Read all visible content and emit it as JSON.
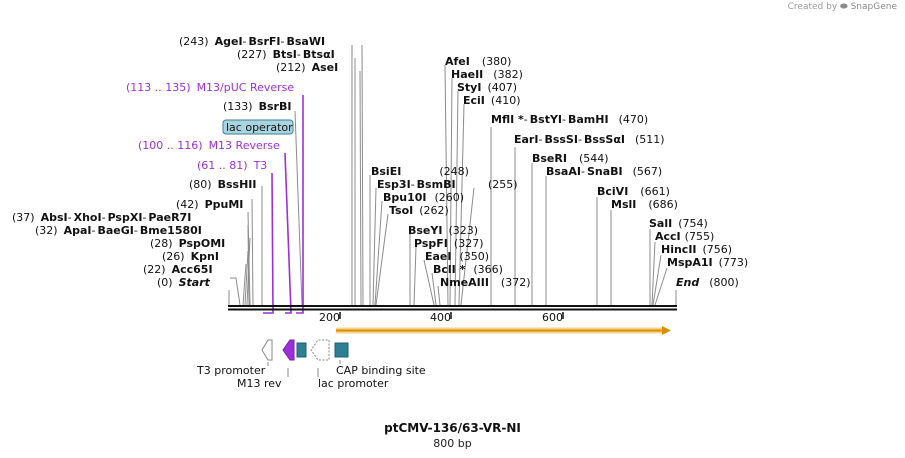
{
  "credit": {
    "prefix": "Created by",
    "brand": "SnapGene"
  },
  "plasmid": {
    "name": "ptCMV-136/63-VR-NI",
    "size_label": "800 bp"
  },
  "ruler": {
    "ticks": [
      "200",
      "400",
      "600"
    ]
  },
  "colors": {
    "feature_purple": "#9b30d9",
    "feature_teal": "#2f7f93",
    "orf_orange": "#f0a020",
    "lac_box": "#a9d4df"
  },
  "sites": [
    {
      "pos": "(243)",
      "names": [
        {
          "t": "AgeI"
        },
        {
          "t": "BsrFI"
        },
        {
          "t": "BsaWI"
        }
      ]
    },
    {
      "pos": "(227)",
      "names": [
        {
          "t": "BtsI"
        },
        {
          "t": "BtsαI"
        }
      ]
    },
    {
      "pos": "(212)",
      "names": [
        {
          "t": "AseI"
        }
      ]
    },
    {
      "pos": "(113 .. 135)",
      "names": [
        {
          "t": "M13/pUC Reverse"
        }
      ],
      "feature": true
    },
    {
      "pos": "(133)",
      "names": [
        {
          "t": "BsrBI"
        }
      ]
    },
    {
      "pos": "",
      "names": [
        {
          "t": "lac operator"
        }
      ],
      "box": true
    },
    {
      "pos": "(100 .. 116)",
      "names": [
        {
          "t": "M13 Reverse"
        }
      ],
      "feature": true
    },
    {
      "pos": "(61 .. 81)",
      "names": [
        {
          "t": "T3"
        }
      ],
      "feature": true
    },
    {
      "pos": "(80)",
      "names": [
        {
          "t": "BssHII"
        }
      ]
    },
    {
      "pos": "(42)",
      "names": [
        {
          "t": "PpuMI"
        }
      ]
    },
    {
      "pos": "(37)",
      "names": [
        {
          "t": "AbsI"
        },
        {
          "t": "XhoI"
        },
        {
          "t": "PspXI"
        },
        {
          "t": "PaeR7I"
        }
      ]
    },
    {
      "pos": "(32)",
      "names": [
        {
          "t": "ApaI"
        },
        {
          "t": "BaeGI"
        },
        {
          "t": "Bme1580I"
        }
      ]
    },
    {
      "pos": "(28)",
      "names": [
        {
          "t": "PspOMI"
        }
      ]
    },
    {
      "pos": "(26)",
      "names": [
        {
          "t": "KpnI"
        }
      ]
    },
    {
      "pos": "(22)",
      "names": [
        {
          "t": "Acc65I"
        }
      ]
    },
    {
      "pos": "(0)",
      "names": [
        {
          "t": "Start",
          "i": true
        }
      ]
    },
    {
      "pos": "(248)",
      "names": [
        {
          "t": "BsiEI"
        }
      ]
    },
    {
      "pos": "",
      "names": [
        {
          "t": "Esp3I"
        },
        {
          "t": "BsmBI"
        }
      ]
    },
    {
      "pos": "(260)",
      "names": [
        {
          "t": "Bpu10I"
        }
      ]
    },
    {
      "pos": "(262)",
      "names": [
        {
          "t": "TsoI"
        }
      ]
    },
    {
      "pos": "(255)",
      "names": []
    },
    {
      "pos": "(323)",
      "names": [
        {
          "t": "BseYI"
        }
      ]
    },
    {
      "pos": "(327)",
      "names": [
        {
          "t": "PspFI"
        }
      ]
    },
    {
      "pos": "(350)",
      "names": [
        {
          "t": "EaeI"
        }
      ]
    },
    {
      "pos": "(366)",
      "names": [
        {
          "t": "BclI *"
        }
      ]
    },
    {
      "pos": "(372)",
      "names": [
        {
          "t": "NmeAIII"
        }
      ]
    },
    {
      "pos": "(380)",
      "names": [
        {
          "t": "AfeI"
        }
      ]
    },
    {
      "pos": "(382)",
      "names": [
        {
          "t": "HaeII"
        }
      ]
    },
    {
      "pos": "(407)",
      "names": [
        {
          "t": "StyI"
        }
      ]
    },
    {
      "pos": "(410)",
      "names": [
        {
          "t": "EciI"
        }
      ]
    },
    {
      "pos": "(470)",
      "names": [
        {
          "t": "MflI *"
        },
        {
          "t": "BstYI"
        },
        {
          "t": "BamHI"
        }
      ]
    },
    {
      "pos": "(511)",
      "names": [
        {
          "t": "EarI"
        },
        {
          "t": "BssSI"
        },
        {
          "t": "BssSαI"
        }
      ]
    },
    {
      "pos": "(544)",
      "names": [
        {
          "t": "BseRI"
        }
      ]
    },
    {
      "pos": "(567)",
      "names": [
        {
          "t": "BsaAI"
        },
        {
          "t": "SnaBI"
        }
      ]
    },
    {
      "pos": "(661)",
      "names": [
        {
          "t": "BciVI"
        }
      ]
    },
    {
      "pos": "(686)",
      "names": [
        {
          "t": "MslI"
        }
      ]
    },
    {
      "pos": "(754)",
      "names": [
        {
          "t": "SalI"
        }
      ]
    },
    {
      "pos": "(755)",
      "names": [
        {
          "t": "AccI"
        }
      ]
    },
    {
      "pos": "(756)",
      "names": [
        {
          "t": "HincII"
        }
      ]
    },
    {
      "pos": "(773)",
      "names": [
        {
          "t": "MspA1I"
        }
      ]
    },
    {
      "pos": "(800)",
      "names": [
        {
          "t": "End",
          "i": true
        }
      ]
    }
  ],
  "features": [
    {
      "label": "T3 promoter"
    },
    {
      "label": "M13 rev"
    },
    {
      "label": "lac promoter"
    },
    {
      "label": "CAP binding site"
    }
  ]
}
